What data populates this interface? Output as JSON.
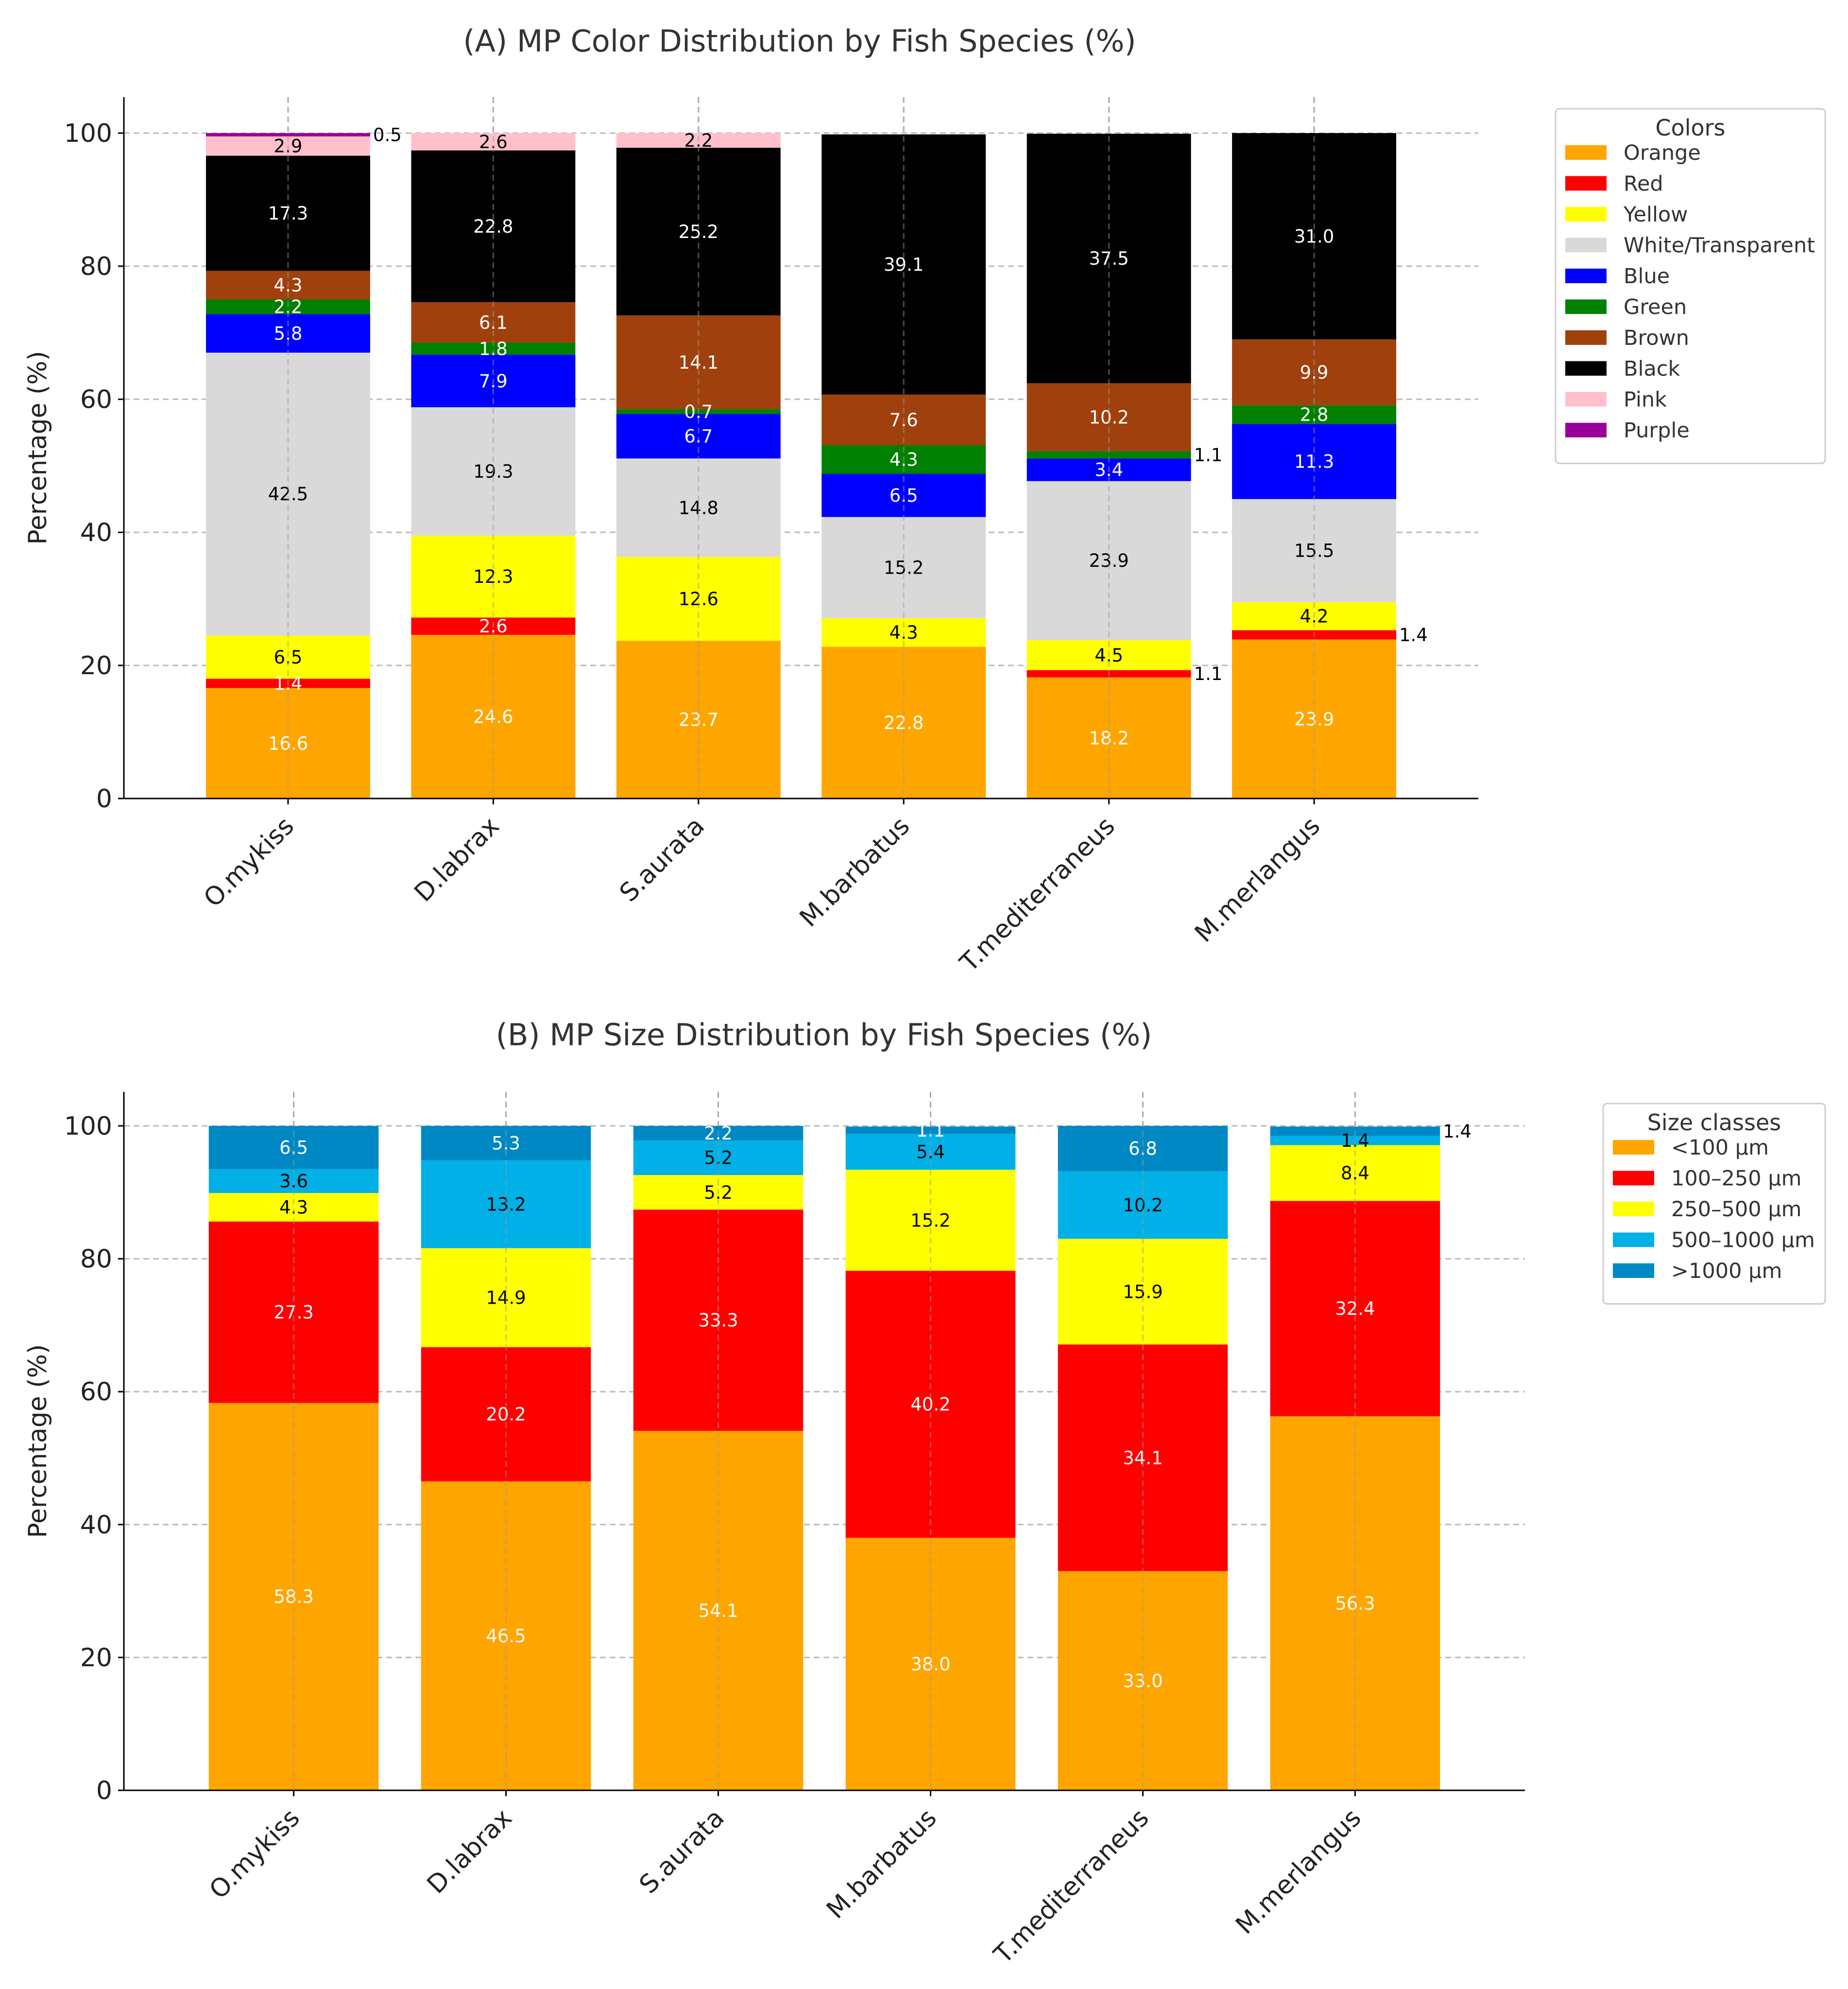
{
  "chart_data": [
    {
      "type": "bar",
      "stacked": true,
      "title": "(A) MP Color Distribution by Fish Species (%)",
      "xlabel": "",
      "ylabel": "Percentage (%)",
      "ylim": [
        0,
        105
      ],
      "yticks": [
        0,
        20,
        40,
        60,
        80,
        100
      ],
      "grid": true,
      "legend_title": "Colors",
      "legend_position": "right",
      "categories": [
        "O.mykiss",
        "D.labrax",
        "S.aurata",
        "M.barbatus",
        "T.mediterraneus",
        "M.merlangus"
      ],
      "series": [
        {
          "name": "Orange",
          "color": "#FFA500",
          "label_color": "#ffffff",
          "values": [
            16.6,
            24.6,
            23.7,
            22.8,
            18.2,
            23.9
          ]
        },
        {
          "name": "Red",
          "color": "#FF0000",
          "label_color": "#ffffff",
          "values": [
            1.4,
            2.6,
            0,
            0,
            1.1,
            1.4
          ]
        },
        {
          "name": "Yellow",
          "color": "#FFFF00",
          "label_color": "#000000",
          "values": [
            6.5,
            12.3,
            12.6,
            4.3,
            4.5,
            4.2
          ]
        },
        {
          "name": "White/Transparent",
          "color": "#D9D9D9",
          "label_color": "#000000",
          "values": [
            42.5,
            19.3,
            14.8,
            15.2,
            23.9,
            15.5
          ]
        },
        {
          "name": "Blue",
          "color": "#0000FF",
          "label_color": "#ffffff",
          "values": [
            5.8,
            7.9,
            6.7,
            6.5,
            3.4,
            11.3
          ]
        },
        {
          "name": "Green",
          "color": "#008000",
          "label_color": "#ffffff",
          "values": [
            2.2,
            1.8,
            0.7,
            4.3,
            1.1,
            2.8
          ]
        },
        {
          "name": "Brown",
          "color": "#A0410D",
          "label_color": "#ffffff",
          "values": [
            4.3,
            6.1,
            14.1,
            7.6,
            10.2,
            9.9
          ]
        },
        {
          "name": "Black",
          "color": "#000000",
          "label_color": "#ffffff",
          "values": [
            17.3,
            22.8,
            25.2,
            39.1,
            37.5,
            31.0
          ]
        },
        {
          "name": "Pink",
          "color": "#FFC0CB",
          "label_color": "#000000",
          "values": [
            2.9,
            2.6,
            2.2,
            0,
            0,
            0
          ]
        },
        {
          "name": "Purple",
          "color": "#990099",
          "label_color": "#ffffff",
          "values": [
            0.5,
            0,
            0,
            0,
            0,
            0
          ]
        }
      ]
    },
    {
      "type": "bar",
      "stacked": true,
      "title": "(B) MP Size Distribution by Fish Species (%)",
      "xlabel": "",
      "ylabel": "Percentage (%)",
      "ylim": [
        0,
        105
      ],
      "yticks": [
        0,
        20,
        40,
        60,
        80,
        100
      ],
      "grid": true,
      "legend_title": "Size classes",
      "legend_position": "right",
      "categories": [
        "O.mykiss",
        "D.labrax",
        "S.aurata",
        "M.barbatus",
        "T.mediterraneus",
        "M.merlangus"
      ],
      "series": [
        {
          "name": "<100 µm",
          "color": "#FFA500",
          "label_color": "#ffffff",
          "values": [
            58.3,
            46.5,
            54.1,
            38.0,
            33.0,
            56.3
          ]
        },
        {
          "name": "100–250 µm",
          "color": "#FF0000",
          "label_color": "#ffffff",
          "values": [
            27.3,
            20.2,
            33.3,
            40.2,
            34.1,
            32.4
          ]
        },
        {
          "name": "250–500 µm",
          "color": "#FFFF00",
          "label_color": "#000000",
          "values": [
            4.3,
            14.9,
            5.2,
            15.2,
            15.9,
            8.4
          ]
        },
        {
          "name": "500–1000 µm",
          "color": "#00B0E6",
          "label_color": "#000000",
          "values": [
            3.6,
            13.2,
            5.2,
            5.4,
            10.2,
            1.4
          ]
        },
        {
          "name": ">1000 µm",
          "color": "#0088C4",
          "label_color": "#ffffff",
          "values": [
            6.5,
            5.3,
            2.2,
            1.1,
            6.8,
            1.4
          ]
        }
      ]
    }
  ]
}
